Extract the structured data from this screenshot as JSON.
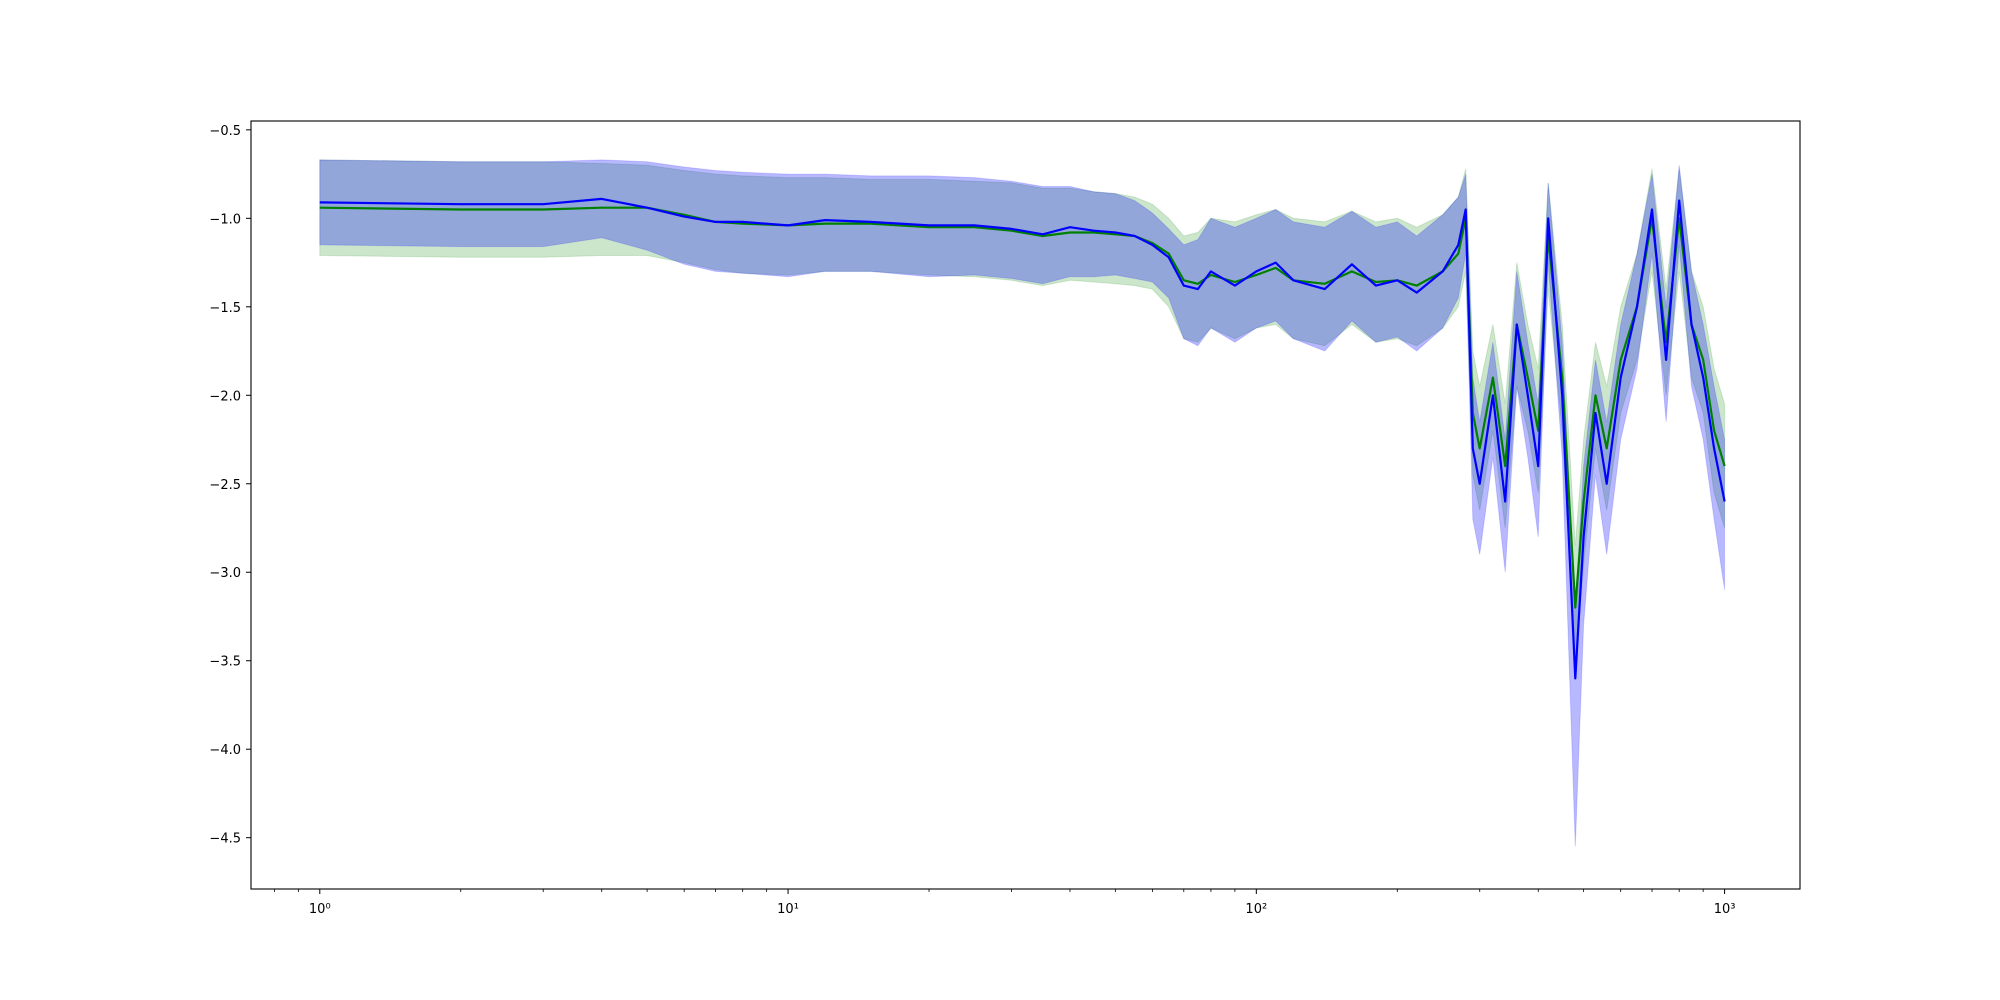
{
  "chart_data": {
    "type": "line",
    "xscale": "log",
    "grid": false,
    "xlim": [
      0.713,
      1449
    ],
    "ylim": [
      -4.79,
      -0.45
    ],
    "xticks": [
      {
        "value": 1,
        "label": "10⁰"
      },
      {
        "value": 10,
        "label": "10¹"
      },
      {
        "value": 100,
        "label": "10²"
      },
      {
        "value": 1000,
        "label": "10³"
      }
    ],
    "xminorticks": [
      0.8,
      0.9,
      2,
      3,
      4,
      5,
      6,
      7,
      8,
      9,
      20,
      30,
      40,
      50,
      60,
      70,
      80,
      90,
      200,
      300,
      400,
      500,
      600,
      700,
      800,
      900
    ],
    "yticks": [
      {
        "value": -4.5,
        "label": "−4.5"
      },
      {
        "value": -4.0,
        "label": "−4.0"
      },
      {
        "value": -3.5,
        "label": "−3.5"
      },
      {
        "value": -3.0,
        "label": "−3.0"
      },
      {
        "value": -2.5,
        "label": "−2.5"
      },
      {
        "value": -2.0,
        "label": "−2.0"
      },
      {
        "value": -1.5,
        "label": "−1.5"
      },
      {
        "value": -1.0,
        "label": "−1.0"
      },
      {
        "value": -0.5,
        "label": "−0.5"
      }
    ],
    "x": [
      1,
      2,
      3,
      4,
      5,
      6,
      7,
      8,
      10,
      12,
      15,
      20,
      25,
      30,
      35,
      40,
      45,
      50,
      55,
      60,
      65,
      70,
      75,
      80,
      90,
      100,
      110,
      120,
      140,
      160,
      180,
      200,
      220,
      250,
      270,
      280,
      290,
      300,
      320,
      340,
      360,
      380,
      400,
      420,
      450,
      480,
      500,
      530,
      560,
      600,
      650,
      700,
      750,
      800,
      850,
      900,
      950,
      1000
    ],
    "series": [
      {
        "color": "#008000",
        "values": [
          -0.94,
          -0.95,
          -0.95,
          -0.94,
          -0.94,
          -0.98,
          -1.02,
          -1.03,
          -1.04,
          -1.03,
          -1.03,
          -1.05,
          -1.05,
          -1.07,
          -1.1,
          -1.08,
          -1.08,
          -1.09,
          -1.1,
          -1.14,
          -1.2,
          -1.35,
          -1.37,
          -1.32,
          -1.36,
          -1.32,
          -1.28,
          -1.35,
          -1.37,
          -1.3,
          -1.36,
          -1.35,
          -1.38,
          -1.3,
          -1.2,
          -1.0,
          -2.1,
          -2.3,
          -1.9,
          -2.4,
          -1.6,
          -1.9,
          -2.2,
          -1.1,
          -1.9,
          -3.2,
          -2.6,
          -2.0,
          -2.3,
          -1.8,
          -1.5,
          -1.0,
          -1.7,
          -1.0,
          -1.6,
          -1.8,
          -2.2,
          -2.4
        ],
        "upper": [
          -0.67,
          -0.68,
          -0.68,
          -0.69,
          -0.7,
          -0.73,
          -0.75,
          -0.76,
          -0.77,
          -0.77,
          -0.78,
          -0.78,
          -0.79,
          -0.8,
          -0.83,
          -0.83,
          -0.85,
          -0.86,
          -0.88,
          -0.92,
          -1.0,
          -1.1,
          -1.08,
          -1.0,
          -1.02,
          -0.98,
          -0.95,
          -1.0,
          -1.02,
          -0.96,
          -1.02,
          -1.0,
          -1.05,
          -0.98,
          -0.88,
          -0.72,
          -1.75,
          -1.95,
          -1.6,
          -2.05,
          -1.25,
          -1.6,
          -1.85,
          -0.8,
          -1.6,
          -2.85,
          -2.25,
          -1.7,
          -1.95,
          -1.5,
          -1.2,
          -0.72,
          -1.4,
          -0.72,
          -1.3,
          -1.5,
          -1.85,
          -2.05
        ],
        "lower": [
          -1.21,
          -1.22,
          -1.22,
          -1.21,
          -1.21,
          -1.25,
          -1.29,
          -1.31,
          -1.32,
          -1.3,
          -1.3,
          -1.32,
          -1.33,
          -1.35,
          -1.38,
          -1.35,
          -1.36,
          -1.37,
          -1.38,
          -1.4,
          -1.5,
          -1.68,
          -1.7,
          -1.62,
          -1.68,
          -1.62,
          -1.6,
          -1.68,
          -1.72,
          -1.6,
          -1.7,
          -1.68,
          -1.72,
          -1.62,
          -1.5,
          -1.3,
          -2.45,
          -2.65,
          -2.2,
          -2.75,
          -1.95,
          -2.2,
          -2.55,
          -1.4,
          -2.2,
          -3.55,
          -2.95,
          -2.3,
          -2.65,
          -2.1,
          -1.8,
          -1.3,
          -2.0,
          -1.3,
          -1.9,
          -2.1,
          -2.55,
          -2.75
        ]
      },
      {
        "color": "#0000ff",
        "values": [
          -0.91,
          -0.92,
          -0.92,
          -0.89,
          -0.94,
          -0.99,
          -1.02,
          -1.02,
          -1.04,
          -1.01,
          -1.02,
          -1.04,
          -1.04,
          -1.06,
          -1.09,
          -1.05,
          -1.07,
          -1.08,
          -1.1,
          -1.15,
          -1.22,
          -1.38,
          -1.4,
          -1.3,
          -1.38,
          -1.3,
          -1.25,
          -1.35,
          -1.4,
          -1.26,
          -1.38,
          -1.35,
          -1.42,
          -1.3,
          -1.15,
          -0.95,
          -2.3,
          -2.5,
          -2.0,
          -2.6,
          -1.6,
          -2.0,
          -2.4,
          -1.0,
          -2.0,
          -3.6,
          -2.8,
          -2.1,
          -2.5,
          -1.9,
          -1.5,
          -0.95,
          -1.8,
          -0.9,
          -1.6,
          -1.9,
          -2.3,
          -2.6
        ],
        "upper": [
          -0.67,
          -0.68,
          -0.68,
          -0.67,
          -0.68,
          -0.71,
          -0.73,
          -0.74,
          -0.75,
          -0.75,
          -0.76,
          -0.76,
          -0.77,
          -0.79,
          -0.82,
          -0.82,
          -0.85,
          -0.86,
          -0.9,
          -0.97,
          -1.06,
          -1.15,
          -1.12,
          -1.0,
          -1.05,
          -1.0,
          -0.95,
          -1.02,
          -1.05,
          -0.96,
          -1.05,
          -1.02,
          -1.1,
          -0.98,
          -0.88,
          -0.75,
          -1.9,
          -2.15,
          -1.7,
          -2.25,
          -1.3,
          -1.7,
          -2.05,
          -0.8,
          -1.7,
          -3.2,
          -2.4,
          -1.8,
          -2.15,
          -1.6,
          -1.2,
          -0.75,
          -1.5,
          -0.7,
          -1.3,
          -1.6,
          -1.95,
          -2.25
        ],
        "lower": [
          -1.15,
          -1.16,
          -1.16,
          -1.11,
          -1.18,
          -1.26,
          -1.3,
          -1.31,
          -1.33,
          -1.3,
          -1.3,
          -1.33,
          -1.32,
          -1.34,
          -1.37,
          -1.33,
          -1.33,
          -1.32,
          -1.34,
          -1.36,
          -1.45,
          -1.68,
          -1.72,
          -1.62,
          -1.7,
          -1.62,
          -1.58,
          -1.68,
          -1.75,
          -1.58,
          -1.7,
          -1.67,
          -1.75,
          -1.62,
          -1.45,
          -1.2,
          -2.7,
          -2.9,
          -2.35,
          -3.0,
          -1.95,
          -2.35,
          -2.8,
          -1.25,
          -2.35,
          -4.55,
          -3.3,
          -2.45,
          -2.9,
          -2.25,
          -1.85,
          -1.2,
          -2.15,
          -1.15,
          -1.95,
          -2.25,
          -2.7,
          -3.1
        ]
      }
    ]
  }
}
